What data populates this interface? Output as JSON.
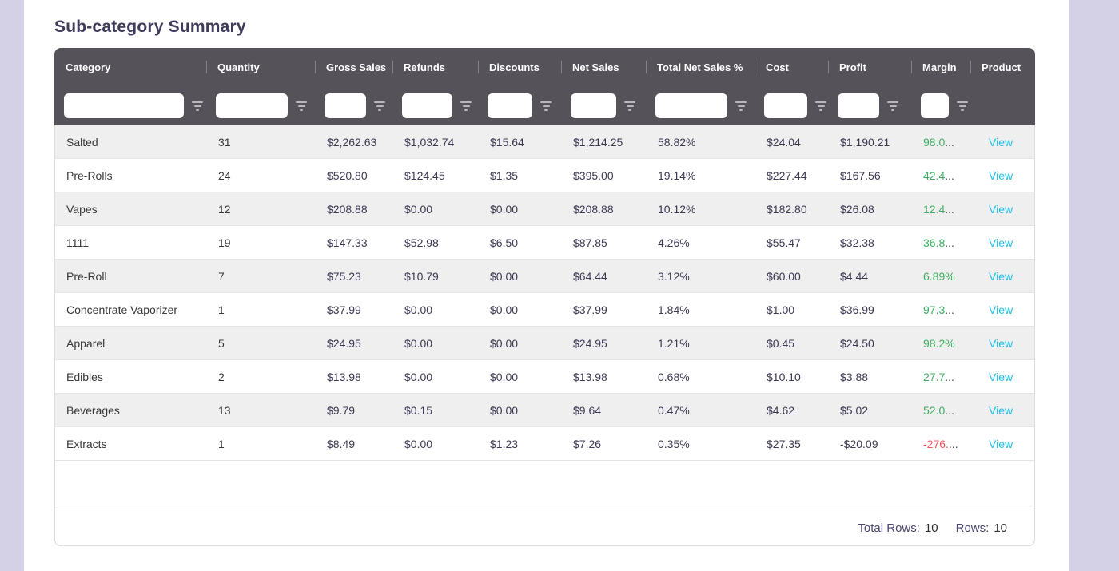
{
  "page": {
    "title": "Sub-category Summary"
  },
  "colors": {
    "background": "#d4d0e5",
    "header_bg": "#55525a",
    "title_text": "#3e3b5b",
    "money_text": "#3d3954",
    "margin_positive": "#3eae60",
    "margin_negative": "#f0555a",
    "link": "#1fc0e8",
    "stripe_row": "#efefef"
  },
  "icons": {
    "filter_icon": "funnel-triple-bar"
  },
  "table": {
    "columns": [
      {
        "label": "Category"
      },
      {
        "label": "Quantity"
      },
      {
        "label": "Gross Sales"
      },
      {
        "label": "Refunds"
      },
      {
        "label": "Discounts"
      },
      {
        "label": "Net Sales"
      },
      {
        "label": "Total Net Sales %"
      },
      {
        "label": "Cost"
      },
      {
        "label": "Profit"
      },
      {
        "label": "Margin"
      },
      {
        "label": "Product"
      }
    ],
    "filters": {
      "values": [
        "",
        "",
        "",
        "",
        "",
        "",
        "",
        "",
        "",
        ""
      ]
    },
    "rows": [
      {
        "category": "Salted",
        "quantity": "31",
        "gross_sales": "$2,262.63",
        "refunds": "$1,032.74",
        "discounts": "$15.64",
        "net_sales": "$1,214.25",
        "total_net_sales_pct": "58.82%",
        "cost": "$24.04",
        "profit": "$1,190.21",
        "margin_value": "98.0",
        "margin_dots": "...",
        "margin_color": "green",
        "product_link": "View"
      },
      {
        "category": "Pre-Rolls",
        "quantity": "24",
        "gross_sales": "$520.80",
        "refunds": "$124.45",
        "discounts": "$1.35",
        "net_sales": "$395.00",
        "total_net_sales_pct": "19.14%",
        "cost": "$227.44",
        "profit": "$167.56",
        "margin_value": "42.4",
        "margin_dots": "...",
        "margin_color": "green",
        "product_link": "View"
      },
      {
        "category": "Vapes",
        "quantity": "12",
        "gross_sales": "$208.88",
        "refunds": "$0.00",
        "discounts": "$0.00",
        "net_sales": "$208.88",
        "total_net_sales_pct": "10.12%",
        "cost": "$182.80",
        "profit": "$26.08",
        "margin_value": "12.4",
        "margin_dots": "...",
        "margin_color": "green",
        "product_link": "View"
      },
      {
        "category": "1111",
        "quantity": "19",
        "gross_sales": "$147.33",
        "refunds": "$52.98",
        "discounts": "$6.50",
        "net_sales": "$87.85",
        "total_net_sales_pct": "4.26%",
        "cost": "$55.47",
        "profit": "$32.38",
        "margin_value": "36.8",
        "margin_dots": "...",
        "margin_color": "green",
        "product_link": "View"
      },
      {
        "category": "Pre-Roll",
        "quantity": "7",
        "gross_sales": "$75.23",
        "refunds": "$10.79",
        "discounts": "$0.00",
        "net_sales": "$64.44",
        "total_net_sales_pct": "3.12%",
        "cost": "$60.00",
        "profit": "$4.44",
        "margin_value": "6.89%",
        "margin_dots": "",
        "margin_color": "green",
        "product_link": "View"
      },
      {
        "category": "Concentrate Vaporizer",
        "quantity": "1",
        "gross_sales": "$37.99",
        "refunds": "$0.00",
        "discounts": "$0.00",
        "net_sales": "$37.99",
        "total_net_sales_pct": "1.84%",
        "cost": "$1.00",
        "profit": "$36.99",
        "margin_value": "97.3",
        "margin_dots": "...",
        "margin_color": "green",
        "product_link": "View"
      },
      {
        "category": "Apparel",
        "quantity": "5",
        "gross_sales": "$24.95",
        "refunds": "$0.00",
        "discounts": "$0.00",
        "net_sales": "$24.95",
        "total_net_sales_pct": "1.21%",
        "cost": "$0.45",
        "profit": "$24.50",
        "margin_value": "98.2%",
        "margin_dots": "",
        "margin_color": "green",
        "product_link": "View"
      },
      {
        "category": "Edibles",
        "quantity": "2",
        "gross_sales": "$13.98",
        "refunds": "$0.00",
        "discounts": "$0.00",
        "net_sales": "$13.98",
        "total_net_sales_pct": "0.68%",
        "cost": "$10.10",
        "profit": "$3.88",
        "margin_value": "27.7",
        "margin_dots": "...",
        "margin_color": "green",
        "product_link": "View"
      },
      {
        "category": "Beverages",
        "quantity": "13",
        "gross_sales": "$9.79",
        "refunds": "$0.15",
        "discounts": "$0.00",
        "net_sales": "$9.64",
        "total_net_sales_pct": "0.47%",
        "cost": "$4.62",
        "profit": "$5.02",
        "margin_value": "52.0",
        "margin_dots": "...",
        "margin_color": "green",
        "product_link": "View"
      },
      {
        "category": "Extracts",
        "quantity": "1",
        "gross_sales": "$8.49",
        "refunds": "$0.00",
        "discounts": "$1.23",
        "net_sales": "$7.26",
        "total_net_sales_pct": "0.35%",
        "cost": "$27.35",
        "profit": "-$20.09",
        "margin_value": "-276.",
        "margin_dots": "...",
        "margin_color": "red",
        "product_link": "View"
      }
    ],
    "footer": {
      "total_rows_label": "Total Rows:",
      "total_rows_value": "10",
      "rows_label": "Rows:",
      "rows_value": "10"
    }
  }
}
